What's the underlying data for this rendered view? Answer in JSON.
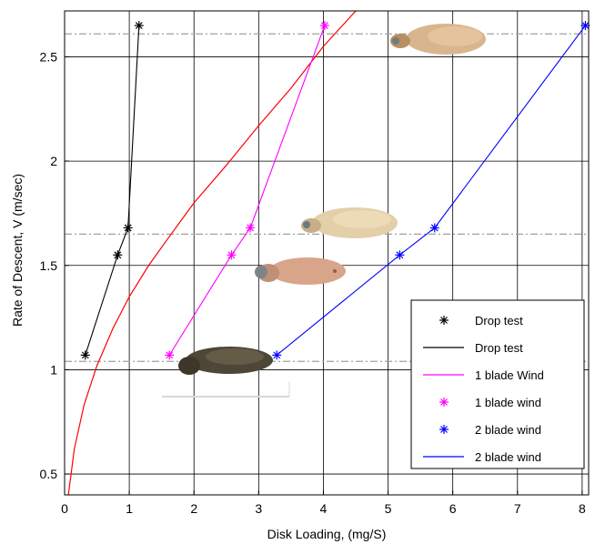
{
  "chart_data": {
    "type": "line",
    "title": "",
    "xlabel": "Disk Loading, (mg/S)",
    "ylabel": "Rate of Descent, V (m/sec)",
    "xlim": [
      0,
      8.1
    ],
    "ylim": [
      0.4,
      2.72
    ],
    "xticks": [
      0,
      1,
      2,
      3,
      4,
      5,
      6,
      7,
      8
    ],
    "yticks": [
      0.5,
      1,
      1.5,
      2,
      2.5
    ],
    "xtick_labels": [
      "0",
      "1",
      "2",
      "3",
      "4",
      "5",
      "6",
      "7",
      "8"
    ],
    "ytick_labels": [
      "0.5",
      "1",
      "1.5",
      "2",
      "2.5"
    ],
    "grid": true,
    "legend_position": "bottom-right",
    "series": [
      {
        "name": "Drop test",
        "kind": "markers",
        "color": "#000000",
        "marker": "asterisk",
        "x": [
          0.32,
          0.82,
          0.98,
          1.15
        ],
        "y": [
          1.07,
          1.55,
          1.68,
          2.65
        ]
      },
      {
        "name": "Drop test",
        "kind": "line",
        "color": "#000000",
        "x": [
          0.32,
          0.82,
          0.98,
          1.15
        ],
        "y": [
          1.07,
          1.55,
          1.68,
          2.65
        ]
      },
      {
        "name": "1 blade Wind",
        "kind": "line",
        "color": "#ff00ff",
        "x": [
          1.62,
          2.58,
          2.87,
          4.02
        ],
        "y": [
          1.07,
          1.55,
          1.68,
          2.65
        ]
      },
      {
        "name": "1 blade wind",
        "kind": "markers",
        "color": "#ff00ff",
        "marker": "asterisk",
        "x": [
          1.62,
          2.58,
          2.87,
          4.02
        ],
        "y": [
          1.07,
          1.55,
          1.68,
          2.65
        ]
      },
      {
        "name": "2 blade wind",
        "kind": "markers",
        "color": "#0000ff",
        "marker": "asterisk",
        "x": [
          3.28,
          5.18,
          5.72,
          8.05
        ],
        "y": [
          1.07,
          1.55,
          1.68,
          2.65
        ]
      },
      {
        "name": "2 blade wind",
        "kind": "line",
        "color": "#0000ff",
        "x": [
          3.28,
          5.18,
          5.72,
          8.05
        ],
        "y": [
          1.07,
          1.55,
          1.68,
          2.65
        ]
      }
    ],
    "curve": {
      "color": "#ff0000",
      "x": [
        0.05,
        0.15,
        0.3,
        0.5,
        0.75,
        1.0,
        1.3,
        1.6,
        2.0,
        2.5,
        3.0,
        3.5,
        4.0,
        4.5
      ],
      "y": [
        0.38,
        0.62,
        0.83,
        1.02,
        1.2,
        1.35,
        1.5,
        1.63,
        1.8,
        1.98,
        2.17,
        2.35,
        2.55,
        2.72
      ]
    },
    "reference_lines_y": [
      1.04,
      1.65,
      2.61
    ]
  },
  "colors": {
    "drop_test": "#000000",
    "one_blade": "#ff00ff",
    "two_blade": "#0000ff",
    "fit_curve": "#ff0000",
    "grid": "#000000",
    "reference": "#a0a0a0"
  },
  "seed_images": [
    "seed-photo",
    "seed-photo",
    "seed-photo",
    "seed-photo"
  ]
}
